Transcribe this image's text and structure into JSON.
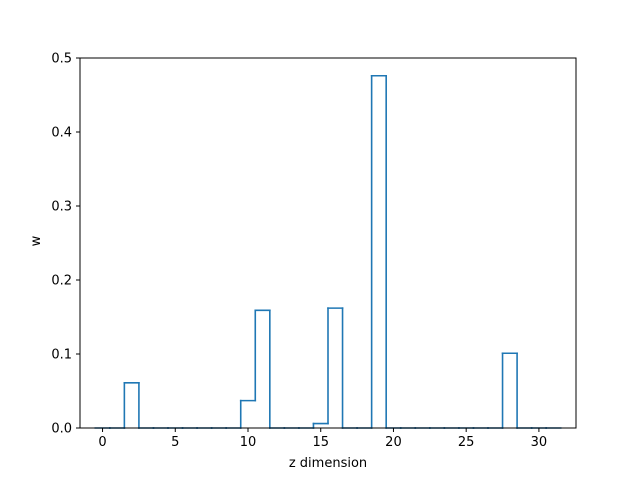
{
  "chart_data": {
    "type": "bar",
    "style": "step-outline",
    "xlabel": "z dimension",
    "ylabel": "w",
    "xlim": [
      -1.55,
      32.55
    ],
    "ylim": [
      0,
      0.5
    ],
    "x_ticks": [
      0,
      5,
      10,
      15,
      20,
      25,
      30
    ],
    "y_ticks": [
      0.0,
      0.1,
      0.2,
      0.3,
      0.4,
      0.5
    ],
    "x_tick_labels": [
      "0",
      "5",
      "10",
      "15",
      "20",
      "25",
      "30"
    ],
    "y_tick_labels": [
      "0.0",
      "0.1",
      "0.2",
      "0.3",
      "0.4",
      "0.5"
    ],
    "grid": false,
    "line_color": "#1f77b4",
    "x": [
      0,
      1,
      2,
      3,
      4,
      5,
      6,
      7,
      8,
      9,
      10,
      11,
      12,
      13,
      14,
      15,
      16,
      17,
      18,
      19,
      20,
      21,
      22,
      23,
      24,
      25,
      26,
      27,
      28,
      29,
      30,
      31
    ],
    "values": [
      0,
      0,
      0.061,
      0,
      0,
      0,
      0,
      0,
      0,
      0,
      0.037,
      0.159,
      0,
      0,
      0,
      0.006,
      0.162,
      0,
      0,
      0.476,
      0,
      0,
      0,
      0,
      0,
      0,
      0,
      0,
      0.101,
      0,
      0,
      0
    ]
  }
}
